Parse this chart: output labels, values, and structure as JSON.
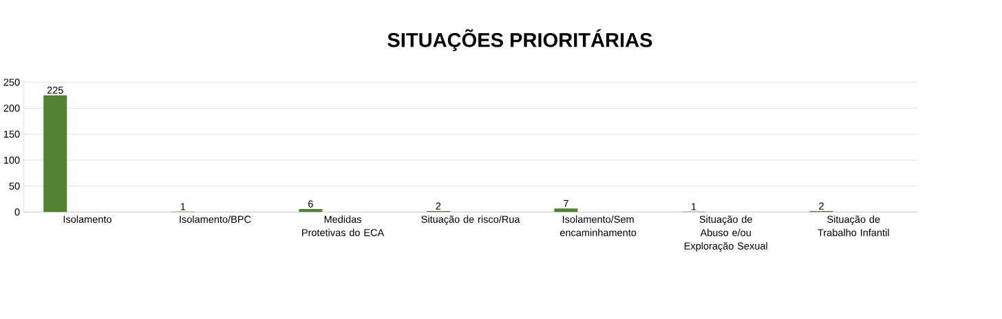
{
  "chart_data": {
    "type": "bar",
    "title": "SITUAÇÕES PRIORITÁRIAS",
    "categories": [
      "Isolamento",
      "Isolamento/BPC",
      "Medidas Protetivas do ECA",
      "Situação de risco/Rua",
      "Isolamento/Sem encaminhamento",
      "Situação de Abuso e/ou Exploração Sexual",
      "Situação de Trabalho Infantil"
    ],
    "values": [
      225,
      1,
      6,
      2,
      7,
      1,
      2
    ],
    "color": "#548235",
    "ylim": [
      0,
      250
    ],
    "yticks": [
      0,
      50,
      100,
      150,
      200,
      250
    ],
    "grid": "y",
    "data_labels": true
  }
}
